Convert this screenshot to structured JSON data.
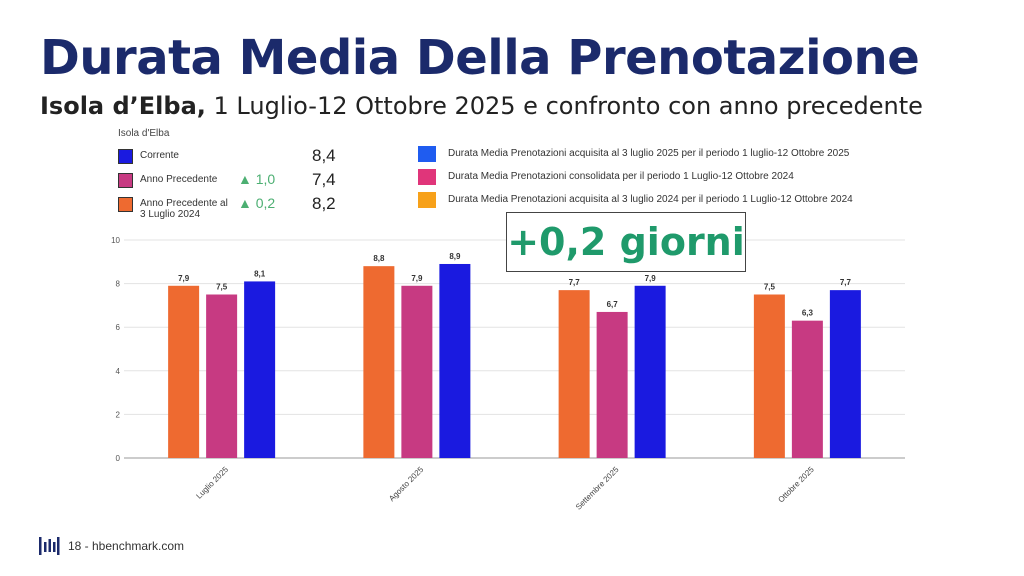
{
  "header": {
    "title": "Durata Media Della Prenotazione",
    "subtitle_bold": "Isola d’Elba,",
    "subtitle_rest": " 1 Luglio-12 Ottobre 2025 e confronto con anno precedente"
  },
  "kpi": {
    "heading": "Isola d'Elba",
    "rows": [
      {
        "label": "Corrente",
        "delta": "",
        "value": "8,4",
        "color": "#1a1ae0"
      },
      {
        "label": "Anno Precedente",
        "delta": "▲ 1,0",
        "value": "7,4",
        "color": "#c73a82"
      },
      {
        "label": "Anno Precedente al 3 Luglio 2024",
        "delta": "▲ 0,2",
        "value": "8,2",
        "color": "#ee6a30"
      }
    ]
  },
  "legend": [
    {
      "label": "Durata Media Prenotazioni acquisita al 3 luglio 2025 per il periodo 1 luglio-12 Ottobre 2025",
      "color": "#1f5cf0"
    },
    {
      "label": "Durata Media Prenotazioni consolidata per il periodo 1 Luglio-12 Ottobre 2024",
      "color": "#e0357a"
    },
    {
      "label": "Durata Media Prenotazioni acquisita al 3 luglio 2024 per il periodo 1 Luglio-12 Ottobre 2024",
      "color": "#f7a11a"
    }
  ],
  "callout": {
    "text": "+0,2 giorni"
  },
  "chart_data": {
    "type": "bar",
    "categories": [
      "Luglio 2025",
      "Agosto 2025",
      "Settembre 2025",
      "Ottobre 2025"
    ],
    "series": [
      {
        "values": [
          7.9,
          8.8,
          7.7,
          7.5
        ],
        "labels": [
          "7,9",
          "8,8",
          "7,7",
          "7,5"
        ],
        "color": "#ee6a30"
      },
      {
        "values": [
          7.5,
          7.9,
          6.7,
          6.3
        ],
        "labels": [
          "7,5",
          "7,9",
          "6,7",
          "6,3"
        ],
        "color": "#c73a82"
      },
      {
        "values": [
          8.1,
          8.9,
          7.9,
          7.7
        ],
        "labels": [
          "8,1",
          "8,9",
          "7,9",
          "7,7"
        ],
        "color": "#1a1ae0"
      }
    ],
    "ylim": [
      0,
      10
    ],
    "yticks": [
      "0",
      "2",
      "4",
      "6",
      "8",
      "10"
    ],
    "grid": true
  },
  "footer": {
    "text": "18 - hbenchmark.com"
  }
}
